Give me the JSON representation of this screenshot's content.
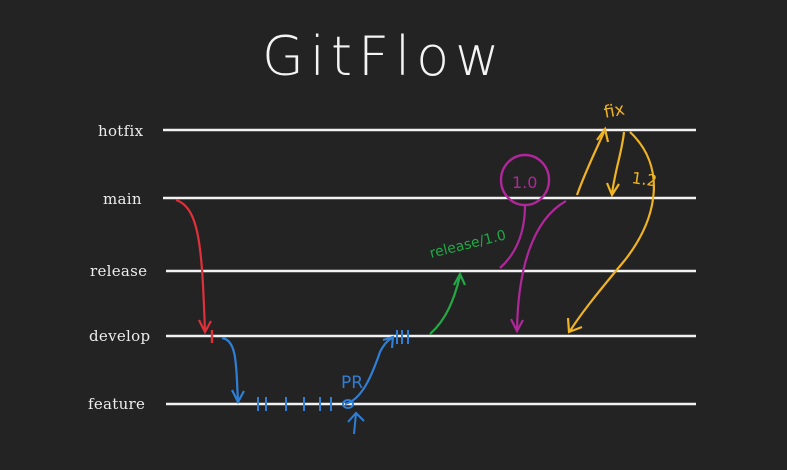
{
  "title": "GitFlow",
  "lanes": [
    {
      "id": "hotfix",
      "label": "hotfix"
    },
    {
      "id": "main",
      "label": "main"
    },
    {
      "id": "release",
      "label": "release"
    },
    {
      "id": "develop",
      "label": "develop"
    },
    {
      "id": "feature",
      "label": "feature"
    }
  ],
  "annotations": {
    "pr": "PR",
    "release_branch": "release/1.0",
    "version_main": "1.0",
    "version_hotfix": "1.2",
    "fix": "fix"
  },
  "colors": {
    "background": "#232323",
    "lane": "#f2f2f2",
    "init": "#e0303a",
    "feature": "#2f7fd6",
    "release": "#23a845",
    "main_release": "#b0279b",
    "hotfix": "#f0b323"
  }
}
